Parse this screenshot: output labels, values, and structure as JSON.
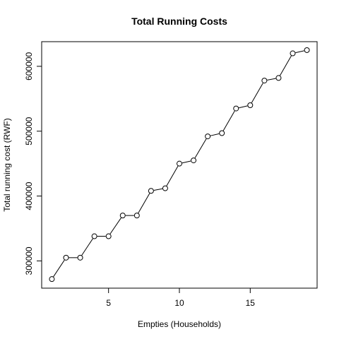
{
  "chart_data": {
    "type": "line",
    "title": "Total Running Costs",
    "xlabel": "Empties (Households)",
    "ylabel": "Total running cost (RWF)",
    "xlim": [
      0.28,
      19.72
    ],
    "ylim": [
      258000,
      638000
    ],
    "xticks": [
      5,
      10,
      15
    ],
    "xtick_labels": [
      "5",
      "10",
      "15"
    ],
    "yticks": [
      300000,
      400000,
      500000,
      600000
    ],
    "ytick_labels": [
      "300000",
      "400000",
      "500000",
      "600000"
    ],
    "grid": false,
    "legend": "none",
    "series": [
      {
        "x": [
          1,
          2,
          3,
          4,
          5,
          6,
          7,
          8,
          9,
          10,
          11,
          12,
          13,
          14,
          15,
          16,
          17,
          18,
          19
        ],
        "values": [
          272000,
          305000,
          305000,
          338000,
          338000,
          370000,
          370000,
          408000,
          412000,
          450000,
          455000,
          492000,
          497000,
          535000,
          540000,
          578000,
          582000,
          620000,
          625000
        ]
      }
    ]
  }
}
